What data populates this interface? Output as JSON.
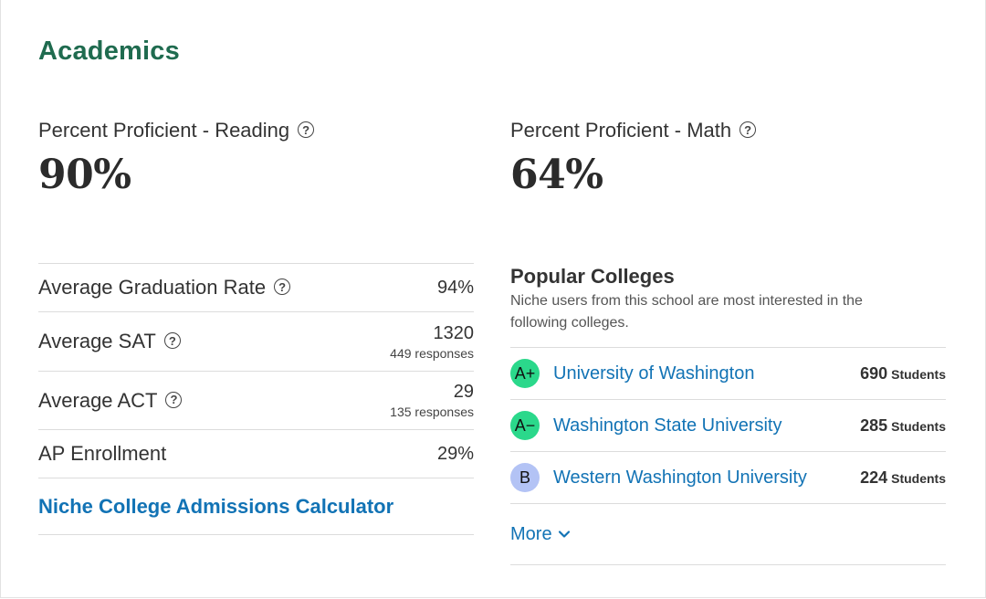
{
  "section_title": "Academics",
  "reading": {
    "label": "Percent Proficient - Reading",
    "value": "90%"
  },
  "math": {
    "label": "Percent Proficient - Math",
    "value": "64%"
  },
  "help_glyph": "?",
  "stats": [
    {
      "label": "Average Graduation Rate",
      "value": "94%",
      "sub": ""
    },
    {
      "label": "Average SAT",
      "value": "1320",
      "sub": "449 responses"
    },
    {
      "label": "Average ACT",
      "value": "29",
      "sub": "135 responses"
    },
    {
      "label": "AP Enrollment",
      "value": "29%",
      "sub": ""
    }
  ],
  "calculator_link": "Niche College Admissions Calculator",
  "popular_colleges": {
    "title": "Popular Colleges",
    "description": "Niche users from this school are most interested in the following colleges.",
    "colleges": [
      {
        "grade": "A+",
        "grade_color": "#2bd88b",
        "name": "University of Washington",
        "count": "690",
        "unit": "Students"
      },
      {
        "grade": "A−",
        "grade_color": "#2bd88b",
        "name": "Washington State University",
        "count": "285",
        "unit": "Students"
      },
      {
        "grade": "B",
        "grade_color": "#b3c3f5",
        "name": "Western Washington University",
        "count": "224",
        "unit": "Students"
      }
    ],
    "more_label": "More"
  },
  "colors": {
    "title_green": "#1f6b4f",
    "link_blue": "#1273b5"
  }
}
